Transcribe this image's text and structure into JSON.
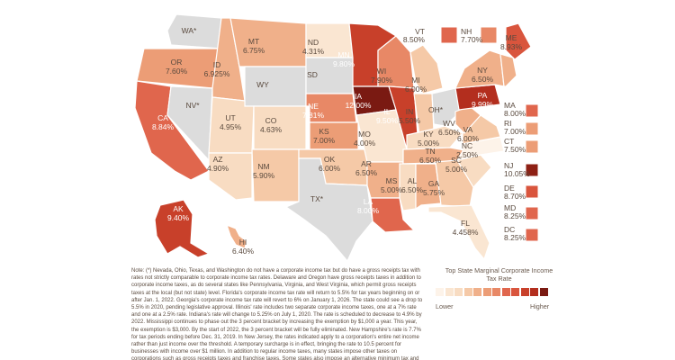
{
  "map": {
    "states": [
      {
        "id": "WA",
        "name": "WA",
        "label": "WA*",
        "rate": "",
        "color": "#dcdcdc"
      },
      {
        "id": "OR",
        "name": "OR",
        "label": "OR",
        "rate": "7.60%",
        "color": "#ec9d76"
      },
      {
        "id": "CA",
        "name": "CA",
        "label": "CA",
        "rate": "8.84%",
        "color": "#e0664d"
      },
      {
        "id": "NV",
        "name": "NV",
        "label": "NV*",
        "rate": "",
        "color": "#dcdcdc"
      },
      {
        "id": "ID",
        "name": "ID",
        "label": "ID",
        "rate": "6.925%",
        "color": "#f0b08a"
      },
      {
        "id": "MT",
        "name": "MT",
        "label": "MT",
        "rate": "6.75%",
        "color": "#f0b08a"
      },
      {
        "id": "WY",
        "name": "WY",
        "label": "WY",
        "rate": "",
        "color": "#dcdcdc"
      },
      {
        "id": "UT",
        "name": "UT",
        "label": "UT",
        "rate": "4.95%",
        "color": "#f8dcc2"
      },
      {
        "id": "AZ",
        "name": "AZ",
        "label": "AZ",
        "rate": "4.90%",
        "color": "#f8dcc2"
      },
      {
        "id": "CO",
        "name": "CO",
        "label": "CO",
        "rate": "4.63%",
        "color": "#f8dcc2"
      },
      {
        "id": "NM",
        "name": "NM",
        "label": "NM",
        "rate": "5.90%",
        "color": "#f5c9a7"
      },
      {
        "id": "ND",
        "name": "ND",
        "label": "ND",
        "rate": "4.31%",
        "color": "#fae6d2"
      },
      {
        "id": "SD",
        "name": "SD",
        "label": "SD",
        "rate": "",
        "color": "#dcdcdc"
      },
      {
        "id": "NE",
        "name": "NE",
        "label": "NE",
        "rate": "7.81%",
        "color": "#e88866"
      },
      {
        "id": "KS",
        "name": "KS",
        "label": "KS",
        "rate": "7.00%",
        "color": "#ec9d76"
      },
      {
        "id": "OK",
        "name": "OK",
        "label": "OK",
        "rate": "6.00%",
        "color": "#f5c9a7"
      },
      {
        "id": "TX",
        "name": "TX",
        "label": "TX*",
        "rate": "",
        "color": "#dcdcdc"
      },
      {
        "id": "MN",
        "name": "MN",
        "label": "MN",
        "rate": "9.80%",
        "color": "#c8402a"
      },
      {
        "id": "IA",
        "name": "IA",
        "label": "IA",
        "rate": "12.00%",
        "color": "#7a1a12"
      },
      {
        "id": "MO",
        "name": "MO",
        "label": "MO",
        "rate": "4.00%",
        "color": "#fae6d2"
      },
      {
        "id": "AR",
        "name": "AR",
        "label": "AR",
        "rate": "6.50%",
        "color": "#f0b08a"
      },
      {
        "id": "LA",
        "name": "LA",
        "label": "LA",
        "rate": "8.00%",
        "color": "#e0664d"
      },
      {
        "id": "WI",
        "name": "WI",
        "label": "WI",
        "rate": "7.90%",
        "color": "#e88866"
      },
      {
        "id": "IL",
        "name": "IL",
        "label": "IL",
        "rate": "9.50%",
        "color": "#c8402a"
      },
      {
        "id": "MI",
        "name": "MI",
        "label": "MI",
        "rate": "6.00%",
        "color": "#f5c9a7"
      },
      {
        "id": "IN",
        "name": "IN",
        "label": "IN",
        "rate": "5.50%",
        "color": "#f5c9a7"
      },
      {
        "id": "OH",
        "name": "OH",
        "label": "OH*",
        "rate": "",
        "color": "#dcdcdc"
      },
      {
        "id": "KY",
        "name": "KY",
        "label": "KY",
        "rate": "5.00%",
        "color": "#f8dcc2"
      },
      {
        "id": "TN",
        "name": "TN",
        "label": "TN",
        "rate": "6.50%",
        "color": "#f0b08a"
      },
      {
        "id": "MS",
        "name": "MS",
        "label": "MS",
        "rate": "5.00%",
        "color": "#f8dcc2"
      },
      {
        "id": "AL",
        "name": "AL",
        "label": "AL",
        "rate": "6.50%",
        "color": "#f0b08a"
      },
      {
        "id": "GA",
        "name": "GA",
        "label": "GA",
        "rate": "5.75%",
        "color": "#f5c9a7"
      },
      {
        "id": "FL",
        "name": "FL",
        "label": "FL",
        "rate": "4.458%",
        "color": "#fae6d2"
      },
      {
        "id": "SC",
        "name": "SC",
        "label": "SC",
        "rate": "5.00%",
        "color": "#f8dcc2"
      },
      {
        "id": "NC",
        "name": "NC",
        "label": "NC",
        "rate": "2.50%",
        "color": "#fdf3e9"
      },
      {
        "id": "VA",
        "name": "VA",
        "label": "VA",
        "rate": "6.00%",
        "color": "#f5c9a7"
      },
      {
        "id": "WV",
        "name": "WV",
        "label": "WV",
        "rate": "6.50%",
        "color": "#f0b08a"
      },
      {
        "id": "PA",
        "name": "PA",
        "label": "PA",
        "rate": "9.99%",
        "color": "#b32e1e"
      },
      {
        "id": "NY",
        "name": "NY",
        "label": "NY",
        "rate": "6.50%",
        "color": "#f0b08a"
      },
      {
        "id": "ME",
        "name": "ME",
        "label": "ME",
        "rate": "8.93%",
        "color": "#d9553d"
      },
      {
        "id": "AK",
        "name": "AK",
        "label": "AK",
        "rate": "9.40%",
        "color": "#c8402a"
      },
      {
        "id": "HI",
        "name": "HI",
        "label": "HI",
        "rate": "6.40%",
        "color": "#f0b08a"
      },
      {
        "id": "NEW",
        "name": "NE",
        "label": "",
        "rate": "",
        "color": "#f0b08a"
      }
    ],
    "chips": [
      {
        "id": "VT",
        "rate": "8.50%",
        "color": "#e0664d"
      },
      {
        "id": "NH",
        "rate": "7.70%",
        "color": "#e88866"
      },
      {
        "id": "MA",
        "rate": "8.00%",
        "color": "#e0664d"
      },
      {
        "id": "RI",
        "rate": "7.00%",
        "color": "#ec9d76"
      },
      {
        "id": "CT",
        "rate": "7.50%",
        "color": "#ec9d76"
      },
      {
        "id": "NJ",
        "rate": "10.05%",
        "color": "#8e2014"
      },
      {
        "id": "DE",
        "rate": "8.70%",
        "color": "#d9553d"
      },
      {
        "id": "MD",
        "rate": "8.25%",
        "color": "#e0664d"
      },
      {
        "id": "DC",
        "rate": "8.25%",
        "color": "#e0664d"
      }
    ]
  },
  "note": "Note: (*) Nevada, Ohio, Texas, and Washington do not have a corporate income tax but do have a gross receipts tax with rates not strictly comparable to corporate income tax rates. Delaware and Oregon have gross receipts taxes in addition to corporate income taxes, as do several states like Pennsylvania, Virginia, and West Virginia, which permit gross receipts taxes at the local (but not state) level. Florida's corporate income tax rate will return to 5.5% for tax years beginning on or after Jan. 1, 2022. Georgia's corporate income tax rate will revert to 6% on January 1, 2026. The state could see a drop to 5.5% in 2020, pending legislative approval. Illinois' rate includes two separate corporate income taxes, one at a 7% rate and one at a 2.5% rate. Indiana's rate will change to 5.25% on July 1, 2020. The rate is scheduled to decrease to 4.9% by 2022. Mississippi continues to phase out the 3 percent bracket by increasing the exemption by $1,000 a year. This year, the exemption is $3,000. By the start of 2022, the 3 percent bracket will be fully eliminated. New Hampshire's rate is 7.7% for tax periods ending before Dec. 31, 2019. In New Jersey, the rates indicated apply to a corporation's entire net income rather than just income over the threshold. A temporary surcharge is in effect, bringing the rate to 10.5 percent for businesses with income over $1 million. In addition to regular income taxes, many states impose other taxes on corporations such as gross receipts taxes and franchise taxes. Some states also impose an alternative minimum tax and special rates on financial institutions.",
  "legend": {
    "title": "Top State Marginal Corporate Income Tax Rate",
    "lower": "Lower",
    "higher": "Higher",
    "colors": [
      "#fdf3e9",
      "#fae6d2",
      "#f8dcc2",
      "#f5c9a7",
      "#f0b08a",
      "#ec9d76",
      "#e88866",
      "#e0664d",
      "#d9553d",
      "#c8402a",
      "#b32e1e",
      "#7a1a12"
    ]
  }
}
